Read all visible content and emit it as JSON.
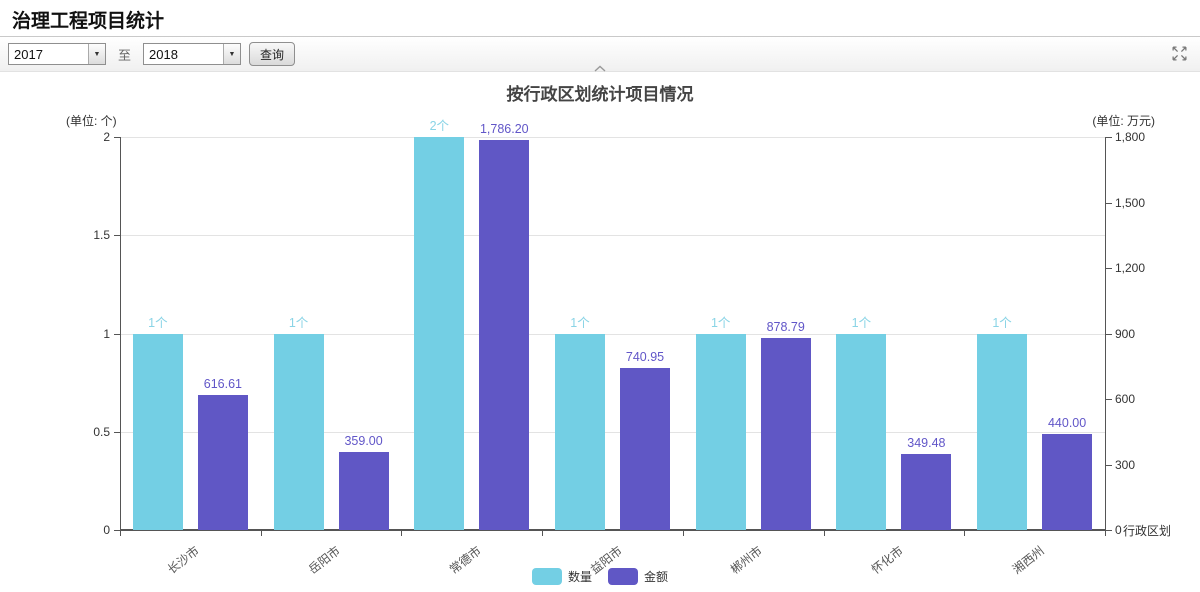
{
  "page": {
    "title": "治理工程项目统计"
  },
  "toolbar": {
    "year_from": "2017",
    "to_label": "至",
    "year_to": "2018",
    "query_button": "查询"
  },
  "icons": {
    "select_arrow": "▼",
    "collapse": "chevron-up",
    "fullscreen": "expand-arrows"
  },
  "chart": {
    "title": "按行政区划统计项目情况",
    "left_axis_unit": "(单位: 个)",
    "right_axis_unit": "(单位: 万元)",
    "colors": {
      "grid": "#e3e3e3",
      "axis": "#555555",
      "quantity": "#73CFE4",
      "amount": "#6057C5"
    }
  },
  "chart_data": {
    "type": "bar",
    "title": "按行政区划统计项目情况",
    "x_axis_name": "行政区划",
    "categories": [
      "长沙市",
      "岳阳市",
      "常德市",
      "益阳市",
      "郴州市",
      "怀化市",
      "湘西州"
    ],
    "series": [
      {
        "name": "数量",
        "unit": "个",
        "axis": "left",
        "color": "#73CFE4",
        "label_color": "#8AD4E6",
        "values": [
          1,
          1,
          2,
          1,
          1,
          1,
          1
        ],
        "data_labels": [
          "1个",
          "1个",
          "2个",
          "1个",
          "1个",
          "1个",
          "1个"
        ]
      },
      {
        "name": "金额",
        "unit": "万元",
        "axis": "right",
        "color": "#6057C5",
        "label_color": "#6156C8",
        "values": [
          616.61,
          359.0,
          1786.2,
          740.95,
          878.79,
          349.48,
          440.0
        ],
        "data_labels": [
          "616.61",
          "359.00",
          "1,786.20",
          "740.95",
          "878.79",
          "349.48",
          "440.00"
        ]
      }
    ],
    "left_axis": {
      "lim": [
        0,
        2
      ],
      "ticks": [
        0,
        0.5,
        1,
        1.5,
        2
      ],
      "tick_labels": [
        "0",
        "0.5",
        "1",
        "1.5",
        "2"
      ]
    },
    "right_axis": {
      "lim": [
        0,
        1800
      ],
      "ticks": [
        0,
        300,
        600,
        900,
        1200,
        1500,
        1800
      ],
      "tick_labels": [
        "0",
        "300",
        "600",
        "900",
        "1,200",
        "1,500",
        "1,800"
      ]
    },
    "grid": true,
    "legend_position": "bottom"
  }
}
